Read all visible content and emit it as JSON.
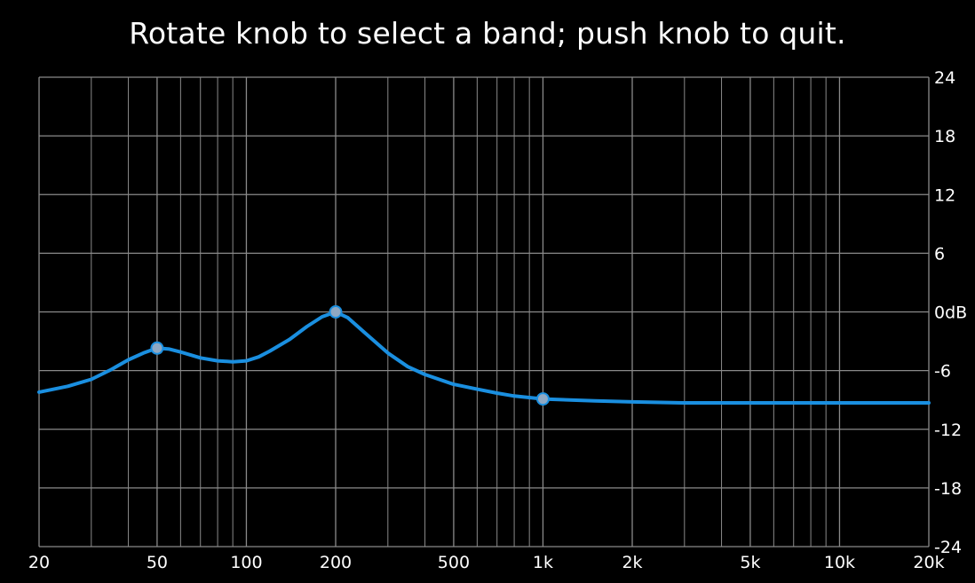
{
  "instruction": "Rotate knob to select a band; push knob to quit.",
  "colors": {
    "background": "#000000",
    "grid": "#8a8a8a",
    "curve": "#1a8fe0",
    "band_marker_fill": "#8fa8c2",
    "band_marker_stroke": "#1a8fe0",
    "text": "#ffffff"
  },
  "chart_data": {
    "type": "line",
    "title": "",
    "xlabel": "",
    "ylabel": "",
    "x_scale": "log",
    "xlim": [
      20,
      20000
    ],
    "ylim": [
      -24,
      24
    ],
    "grid": true,
    "x_major_ticks": [
      20,
      50,
      100,
      200,
      500,
      1000,
      2000,
      5000,
      10000,
      20000
    ],
    "x_tick_labels": [
      "20",
      "50",
      "100",
      "200",
      "500",
      "1k",
      "2k",
      "5k",
      "10k",
      "20k"
    ],
    "x_minor_gridlines": [
      30,
      40,
      60,
      70,
      80,
      90,
      300,
      400,
      600,
      700,
      800,
      900,
      3000,
      4000,
      6000,
      7000,
      8000,
      9000
    ],
    "y_ticks": [
      24,
      18,
      12,
      6,
      0,
      -6,
      -12,
      -18,
      -24
    ],
    "y_tick_labels": [
      "24",
      "18",
      "12",
      "6",
      "0dB",
      "-6",
      "-12",
      "-18",
      "-24"
    ],
    "series": [
      {
        "x": [
          20,
          25,
          30,
          35,
          40,
          45,
          50,
          55,
          60,
          70,
          80,
          90,
          100,
          110,
          120,
          140,
          160,
          180,
          200,
          220,
          250,
          300,
          350,
          400,
          500,
          600,
          700,
          800,
          1000,
          1500,
          2000,
          3000,
          5000,
          10000,
          20000
        ],
        "y": [
          -8.2,
          -7.6,
          -6.9,
          -5.9,
          -4.9,
          -4.2,
          -3.7,
          -3.8,
          -4.1,
          -4.7,
          -5.0,
          -5.1,
          -5.0,
          -4.6,
          -4.0,
          -2.8,
          -1.5,
          -0.5,
          0.0,
          -0.6,
          -2.1,
          -4.2,
          -5.6,
          -6.4,
          -7.4,
          -7.9,
          -8.3,
          -8.6,
          -8.9,
          -9.1,
          -9.2,
          -9.3,
          -9.3,
          -9.3,
          -9.3
        ]
      }
    ],
    "band_points": [
      {
        "x": 50,
        "y": -3.7
      },
      {
        "x": 200,
        "y": 0.0
      },
      {
        "x": 1000,
        "y": -8.9
      }
    ]
  }
}
